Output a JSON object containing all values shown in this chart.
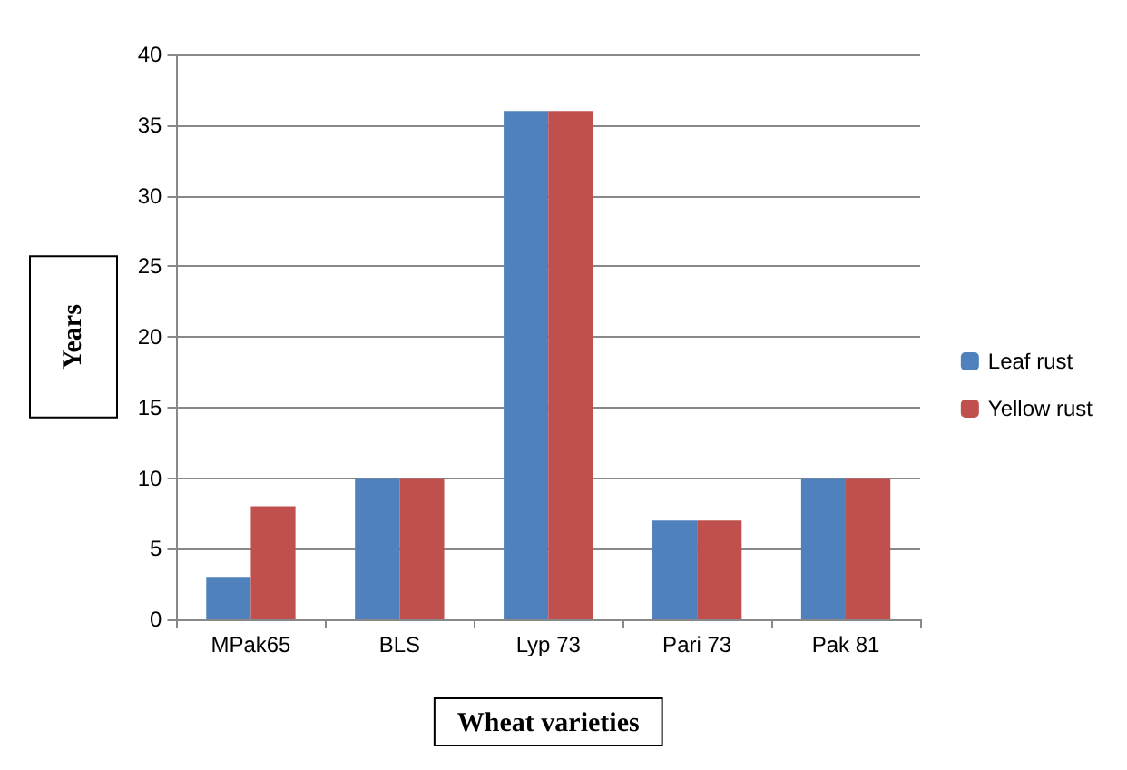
{
  "chart_data": {
    "type": "bar",
    "xlabel": "Wheat varieties",
    "ylabel": "Years",
    "categories": [
      "MPak65",
      "BLS",
      "Lyp 73",
      "Pari 73",
      "Pak 81"
    ],
    "series": [
      {
        "name": "Leaf rust",
        "color": "#4f81bd",
        "values": [
          3,
          10,
          36,
          7,
          10
        ]
      },
      {
        "name": "Yellow rust",
        "color": "#c0504d",
        "values": [
          8,
          10,
          36,
          7,
          10
        ]
      }
    ],
    "ylim": [
      0,
      40
    ],
    "yticks": [
      0,
      5,
      10,
      15,
      20,
      25,
      30,
      35,
      40
    ],
    "grid": "y",
    "legend": "right"
  }
}
